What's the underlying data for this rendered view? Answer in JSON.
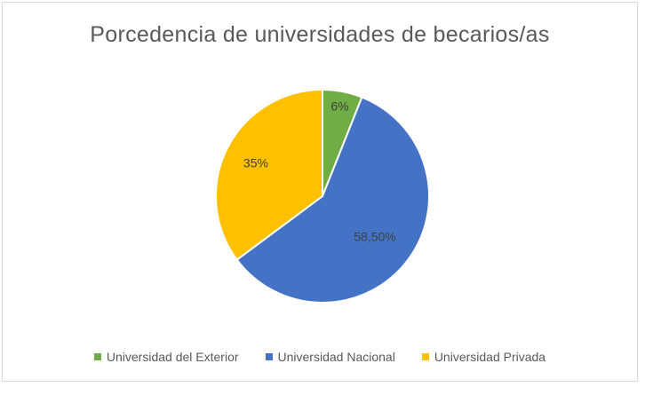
{
  "chart_data": {
    "type": "pie",
    "title": "Porcedencia de universidades de becarios/as",
    "categories": [
      "Universidad del Exterior",
      "Universidad Nacional",
      "Universidad  Privada"
    ],
    "values": [
      6,
      58.5,
      35
    ],
    "data_labels": [
      "6%",
      "58,50%",
      "35%"
    ],
    "colors": [
      "#70ad47",
      "#4472c4",
      "#ffc000"
    ],
    "legend_position": "bottom"
  }
}
